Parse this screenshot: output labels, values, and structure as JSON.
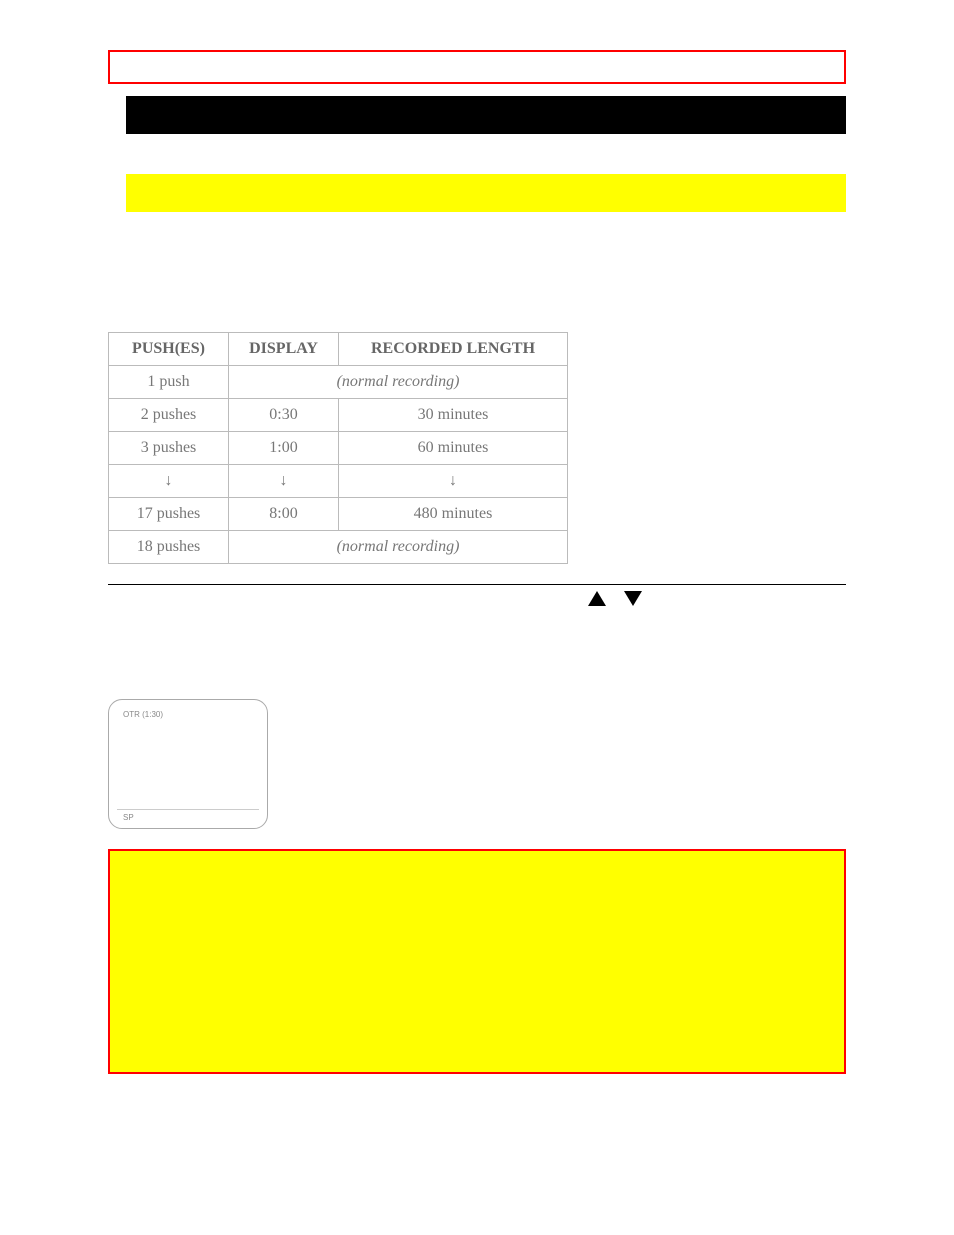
{
  "colors": {
    "red_border": "#ff0000",
    "black_band": "#000000",
    "yellow_band": "#ffff00",
    "yellow_panel_bg": "#ffff00",
    "yellow_panel_border": "#ff0000",
    "table_border": "#bbbbbb",
    "table_text": "#777777",
    "hr": "#000000",
    "screen_border": "#aaaaaa",
    "screen_text": "#888888",
    "background": "#ffffff"
  },
  "table": {
    "headers": {
      "pushes": "PUSH(ES)",
      "display": "DISPLAY",
      "recorded": "RECORDED LENGTH"
    },
    "rows": [
      {
        "pushes": "1 push",
        "display": "",
        "recorded": "(normal recording)",
        "merged": true
      },
      {
        "pushes": "2 pushes",
        "display": "0:30",
        "recorded": "30 minutes"
      },
      {
        "pushes": "3 pushes",
        "display": "1:00",
        "recorded": "60 minutes"
      },
      {
        "pushes": "↓",
        "display": "↓",
        "recorded": "↓",
        "is_arrow": true
      },
      {
        "pushes": "17 pushes",
        "display": "8:00",
        "recorded": "480 minutes"
      },
      {
        "pushes": "18 pushes",
        "display": "",
        "recorded": "(normal recording)",
        "merged": true
      }
    ]
  },
  "triangles": {
    "up": "▲",
    "down": "▼"
  },
  "screen": {
    "otr_label": "OTR (1:30)",
    "sp_label": "SP"
  }
}
